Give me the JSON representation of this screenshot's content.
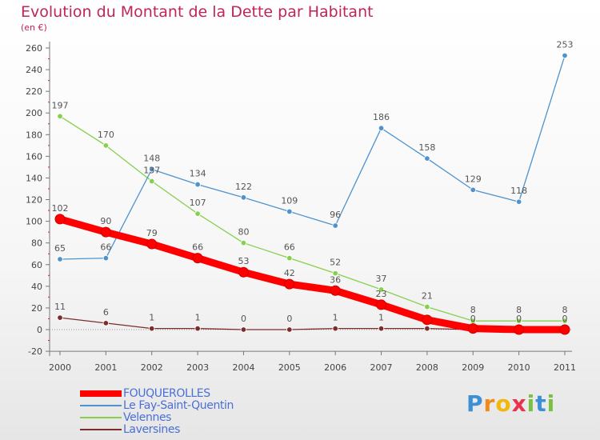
{
  "chart_data": {
    "type": "line",
    "title": "Evolution du Montant de la Dette par Habitant",
    "subtitle": "(en €)",
    "categories": [
      "2000",
      "2001",
      "2002",
      "2003",
      "2004",
      "2005",
      "2006",
      "2007",
      "2008",
      "2009",
      "2010",
      "2011"
    ],
    "ylim": [
      -20,
      260
    ],
    "yticks": [
      -20,
      0,
      20,
      40,
      60,
      80,
      100,
      120,
      140,
      160,
      180,
      200,
      220,
      240,
      260
    ],
    "grid": false,
    "legend_position": "bottom-left",
    "series": [
      {
        "name": "FOUQUEROLLES",
        "color": "#ff0000",
        "values": [
          102,
          90,
          79,
          66,
          53,
          42,
          36,
          23,
          9,
          1,
          0,
          0
        ],
        "labels": [
          "102",
          "90",
          "79",
          "66",
          "53",
          "42",
          "36",
          "23",
          "",
          "",
          "",
          ""
        ]
      },
      {
        "name": "Le Fay-Saint-Quentin",
        "color": "#4f93cd",
        "values": [
          65,
          66,
          148,
          134,
          122,
          109,
          96,
          186,
          158,
          129,
          118,
          253
        ],
        "labels": [
          "65",
          "66",
          "148",
          "134",
          "122",
          "109",
          "96",
          "186",
          "158",
          "129",
          "118",
          "253"
        ]
      },
      {
        "name": "Velennes",
        "color": "#86d04e",
        "values": [
          197,
          170,
          137,
          107,
          80,
          66,
          52,
          37,
          21,
          8,
          8,
          8
        ],
        "labels": [
          "197",
          "170",
          "137",
          "107",
          "80",
          "66",
          "52",
          "37",
          "21",
          "8",
          "8",
          "8"
        ]
      },
      {
        "name": "Laversines",
        "color": "#7b2d2d",
        "values": [
          11,
          6,
          1,
          1,
          0,
          0,
          1,
          1,
          1,
          0,
          0,
          0
        ],
        "labels": [
          "11",
          "6",
          "1",
          "1",
          "0",
          "0",
          "1",
          "1",
          "",
          "0",
          "0",
          "0"
        ]
      }
    ]
  },
  "brand": {
    "letters": [
      "P",
      "r",
      "o",
      "x",
      "i",
      "t",
      "i"
    ],
    "colors": [
      "#3d8fd6",
      "#f08a1c",
      "#f2b80c",
      "#e8344a",
      "#7ac142",
      "#3d8fd6",
      "#7ac142"
    ]
  }
}
